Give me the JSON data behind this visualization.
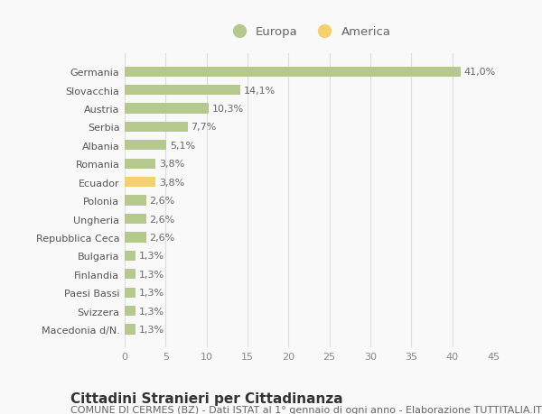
{
  "categories": [
    "Macedonia d/N.",
    "Svizzera",
    "Paesi Bassi",
    "Finlandia",
    "Bulgaria",
    "Repubblica Ceca",
    "Ungheria",
    "Polonia",
    "Ecuador",
    "Romania",
    "Albania",
    "Serbia",
    "Austria",
    "Slovacchia",
    "Germania"
  ],
  "values": [
    1.3,
    1.3,
    1.3,
    1.3,
    1.3,
    2.6,
    2.6,
    2.6,
    3.8,
    3.8,
    5.1,
    7.7,
    10.3,
    14.1,
    41.0
  ],
  "colors": [
    "#b5c98e",
    "#b5c98e",
    "#b5c98e",
    "#b5c98e",
    "#b5c98e",
    "#b5c98e",
    "#b5c98e",
    "#b5c98e",
    "#f5d06e",
    "#b5c98e",
    "#b5c98e",
    "#b5c98e",
    "#b5c98e",
    "#b5c98e",
    "#b5c98e"
  ],
  "labels": [
    "1,3%",
    "1,3%",
    "1,3%",
    "1,3%",
    "1,3%",
    "2,6%",
    "2,6%",
    "2,6%",
    "3,8%",
    "3,8%",
    "5,1%",
    "7,7%",
    "10,3%",
    "14,1%",
    "41,0%"
  ],
  "europa_color": "#b5c98e",
  "america_color": "#f5d06e",
  "legend_europa": "Europa",
  "legend_america": "America",
  "xlim": [
    0,
    45
  ],
  "xticks": [
    0,
    5,
    10,
    15,
    20,
    25,
    30,
    35,
    40,
    45
  ],
  "title": "Cittadini Stranieri per Cittadinanza",
  "subtitle": "COMUNE DI CERMES (BZ) - Dati ISTAT al 1° gennaio di ogni anno - Elaborazione TUTTITALIA.IT",
  "background_color": "#f9f9f9",
  "grid_color": "#dddddd",
  "bar_height": 0.55,
  "title_fontsize": 11,
  "subtitle_fontsize": 8,
  "label_fontsize": 8,
  "tick_fontsize": 8
}
